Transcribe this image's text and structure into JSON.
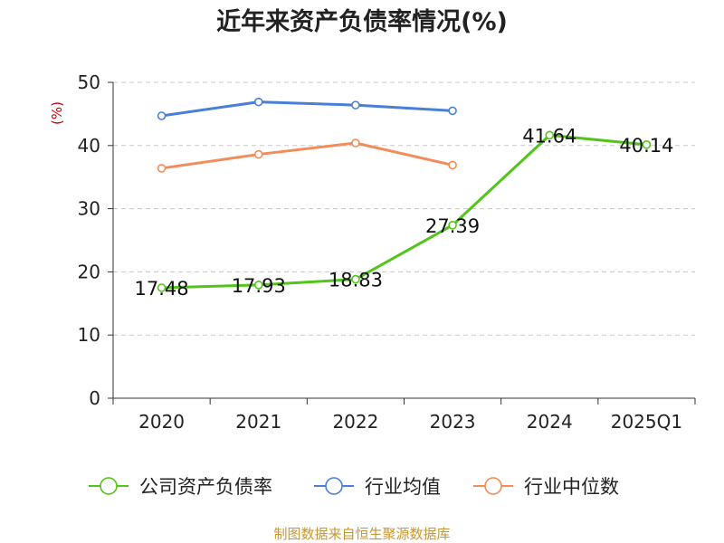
{
  "chart_data": {
    "type": "line",
    "title": "近年来资产负债率情况(%)",
    "ylabel": "(%)",
    "xlabel": "",
    "categories": [
      "2020",
      "2021",
      "2022",
      "2023",
      "2024",
      "2025Q1"
    ],
    "ylim": [
      0,
      50
    ],
    "yticks": [
      0,
      10,
      20,
      30,
      40,
      50
    ],
    "grid": true,
    "legend_position": "bottom",
    "series": [
      {
        "name": "公司资产负债率",
        "color": "#52c41a",
        "values": [
          17.48,
          17.93,
          18.83,
          27.39,
          41.64,
          40.14
        ],
        "labels": [
          "17.48",
          "17.93",
          "18.83",
          "27.39",
          "41.64",
          "40.14"
        ]
      },
      {
        "name": "行业均值",
        "color": "#4a7fd8",
        "values": [
          44.7,
          46.9,
          46.4,
          45.5,
          null,
          null
        ]
      },
      {
        "name": "行业中位数",
        "color": "#f28c58",
        "values": [
          36.4,
          38.6,
          40.4,
          36.9,
          null,
          null
        ]
      }
    ],
    "source": "制图数据来自恒生聚源数据库",
    "source_color": "#c8962e",
    "ylabel_color": "#cc0000"
  }
}
